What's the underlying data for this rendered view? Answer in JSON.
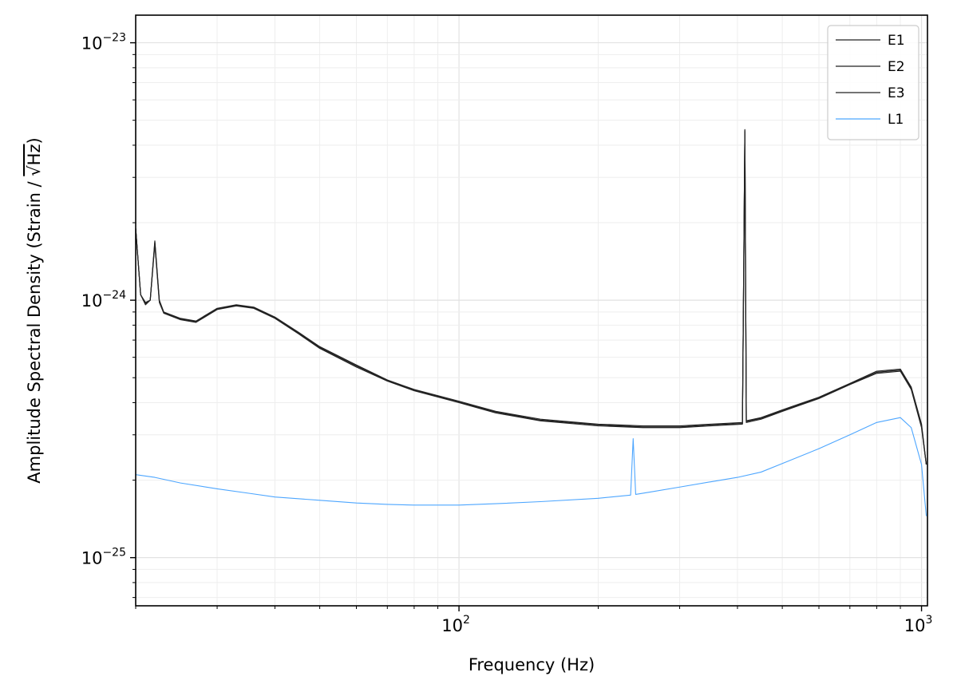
{
  "chart_data": {
    "type": "line",
    "title": "",
    "xlabel": "Frequency (Hz)",
    "ylabel_prefix": "Amplitude Spectral Density (Strain / ",
    "ylabel_sqrt": "√Hz",
    "ylabel_suffix": ")",
    "xscale": "log",
    "yscale": "log",
    "xlim": [
      20,
      1030
    ],
    "ylim": [
      6.5e-26,
      1.28e-23
    ],
    "xticks": [
      {
        "value": 100,
        "base": "10",
        "exp": "2"
      },
      {
        "value": 1000,
        "base": "10",
        "exp": "3"
      }
    ],
    "yticks": [
      {
        "value": 1e-25,
        "base": "10",
        "exp": "−25"
      },
      {
        "value": 1e-24,
        "base": "10",
        "exp": "−24"
      },
      {
        "value": 1e-23,
        "base": "10",
        "exp": "−23"
      }
    ],
    "grid": true,
    "legend_position": "top-right",
    "series": [
      {
        "name": "E1",
        "color": "#222222",
        "points": [
          [
            20,
            1.9e-24
          ],
          [
            20.5,
            1.05e-24
          ],
          [
            21,
            9.8e-25
          ],
          [
            21.5,
            1e-24
          ],
          [
            22,
            1.7e-24
          ],
          [
            22.5,
            1e-24
          ],
          [
            23,
            9e-25
          ],
          [
            25,
            8.5e-25
          ],
          [
            27,
            8.3e-25
          ],
          [
            30,
            9.3e-25
          ],
          [
            33,
            9.6e-25
          ],
          [
            36,
            9.4e-25
          ],
          [
            40,
            8.6e-25
          ],
          [
            45,
            7.5e-25
          ],
          [
            50,
            6.6e-25
          ],
          [
            60,
            5.6e-25
          ],
          [
            70,
            4.9e-25
          ],
          [
            80,
            4.5e-25
          ],
          [
            100,
            4.05e-25
          ],
          [
            120,
            3.7e-25
          ],
          [
            150,
            3.45e-25
          ],
          [
            200,
            3.3e-25
          ],
          [
            250,
            3.25e-25
          ],
          [
            300,
            3.25e-25
          ],
          [
            350,
            3.3e-25
          ],
          [
            410,
            3.35e-25
          ],
          [
            415,
            4.6e-24
          ],
          [
            418,
            3.4e-25
          ],
          [
            450,
            3.5e-25
          ],
          [
            500,
            3.75e-25
          ],
          [
            600,
            4.2e-25
          ],
          [
            700,
            4.75e-25
          ],
          [
            800,
            5.3e-25
          ],
          [
            900,
            5.4e-25
          ],
          [
            950,
            4.6e-25
          ],
          [
            1000,
            3.3e-25
          ],
          [
            1024,
            2.3e-25
          ]
        ]
      },
      {
        "name": "E2",
        "color": "#222222",
        "points": [
          [
            20,
            1.9e-24
          ],
          [
            20.5,
            1.05e-24
          ],
          [
            21,
            9.6e-25
          ],
          [
            21.5,
            1e-24
          ],
          [
            22,
            1.65e-24
          ],
          [
            22.5,
            9.8e-25
          ],
          [
            23,
            8.9e-25
          ],
          [
            25,
            8.4e-25
          ],
          [
            27,
            8.2e-25
          ],
          [
            30,
            9.2e-25
          ],
          [
            33,
            9.5e-25
          ],
          [
            36,
            9.3e-25
          ],
          [
            40,
            8.5e-25
          ],
          [
            45,
            7.4e-25
          ],
          [
            50,
            6.5e-25
          ],
          [
            60,
            5.5e-25
          ],
          [
            70,
            4.85e-25
          ],
          [
            80,
            4.45e-25
          ],
          [
            100,
            4e-25
          ],
          [
            120,
            3.65e-25
          ],
          [
            150,
            3.4e-25
          ],
          [
            200,
            3.25e-25
          ],
          [
            250,
            3.2e-25
          ],
          [
            300,
            3.2e-25
          ],
          [
            350,
            3.25e-25
          ],
          [
            410,
            3.3e-25
          ],
          [
            415,
            4.5e-24
          ],
          [
            418,
            3.35e-25
          ],
          [
            450,
            3.45e-25
          ],
          [
            500,
            3.7e-25
          ],
          [
            600,
            4.15e-25
          ],
          [
            700,
            4.7e-25
          ],
          [
            800,
            5.2e-25
          ],
          [
            900,
            5.3e-25
          ],
          [
            950,
            4.5e-25
          ],
          [
            1000,
            3.2e-25
          ],
          [
            1024,
            2.3e-25
          ]
        ]
      },
      {
        "name": "E3",
        "color": "#222222",
        "points": [
          [
            20,
            1.9e-24
          ],
          [
            20.5,
            1.05e-24
          ],
          [
            21,
            9.7e-25
          ],
          [
            21.5,
            1e-24
          ],
          [
            22,
            1.68e-24
          ],
          [
            22.5,
            9.9e-25
          ],
          [
            23,
            8.95e-25
          ],
          [
            25,
            8.45e-25
          ],
          [
            27,
            8.25e-25
          ],
          [
            30,
            9.25e-25
          ],
          [
            33,
            9.55e-25
          ],
          [
            36,
            9.35e-25
          ],
          [
            40,
            8.55e-25
          ],
          [
            45,
            7.45e-25
          ],
          [
            50,
            6.55e-25
          ],
          [
            60,
            5.55e-25
          ],
          [
            70,
            4.88e-25
          ],
          [
            80,
            4.48e-25
          ],
          [
            100,
            4.02e-25
          ],
          [
            120,
            3.68e-25
          ],
          [
            150,
            3.42e-25
          ],
          [
            200,
            3.28e-25
          ],
          [
            250,
            3.22e-25
          ],
          [
            300,
            3.22e-25
          ],
          [
            350,
            3.28e-25
          ],
          [
            410,
            3.32e-25
          ],
          [
            415,
            4.55e-24
          ],
          [
            418,
            3.38e-25
          ],
          [
            450,
            3.48e-25
          ],
          [
            500,
            3.72e-25
          ],
          [
            600,
            4.18e-25
          ],
          [
            700,
            4.72e-25
          ],
          [
            800,
            5.25e-25
          ],
          [
            900,
            5.35e-25
          ],
          [
            950,
            4.55e-25
          ],
          [
            1000,
            3.25e-25
          ],
          [
            1024,
            2.3e-25
          ]
        ]
      },
      {
        "name": "L1",
        "color": "#4da6ff",
        "points": [
          [
            20,
            2.1e-25
          ],
          [
            22,
            2.05e-25
          ],
          [
            25,
            1.95e-25
          ],
          [
            30,
            1.85e-25
          ],
          [
            35,
            1.78e-25
          ],
          [
            40,
            1.72e-25
          ],
          [
            50,
            1.67e-25
          ],
          [
            60,
            1.63e-25
          ],
          [
            70,
            1.61e-25
          ],
          [
            80,
            1.6e-25
          ],
          [
            100,
            1.6e-25
          ],
          [
            120,
            1.62e-25
          ],
          [
            150,
            1.65e-25
          ],
          [
            200,
            1.7e-25
          ],
          [
            235,
            1.75e-25
          ],
          [
            238,
            2.9e-25
          ],
          [
            241,
            1.76e-25
          ],
          [
            260,
            1.8e-25
          ],
          [
            300,
            1.88e-25
          ],
          [
            350,
            1.97e-25
          ],
          [
            400,
            2.05e-25
          ],
          [
            450,
            2.15e-25
          ],
          [
            500,
            2.32e-25
          ],
          [
            600,
            2.65e-25
          ],
          [
            700,
            3e-25
          ],
          [
            800,
            3.35e-25
          ],
          [
            900,
            3.5e-25
          ],
          [
            950,
            3.2e-25
          ],
          [
            1000,
            2.3e-25
          ],
          [
            1024,
            1.45e-25
          ]
        ]
      }
    ]
  }
}
